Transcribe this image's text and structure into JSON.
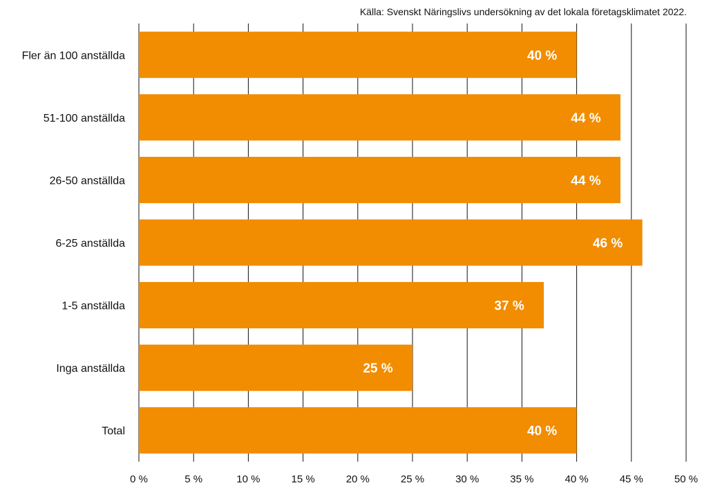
{
  "source_note": "Källa: Svenskt Näringslivs undersökning av det lokala företagsklimatet 2022.",
  "chart_data": {
    "type": "bar",
    "orientation": "horizontal",
    "categories": [
      "Fler än 100 anställda",
      "51-100 anställda",
      "26-50 anställda",
      "6-25 anställda",
      "1-5 anställda",
      "Inga anställda",
      "Total"
    ],
    "values": [
      40,
      44,
      44,
      46,
      37,
      25,
      40
    ],
    "data_labels": [
      "40 %",
      "44 %",
      "44 %",
      "46 %",
      "37 %",
      "25 %",
      "40 %"
    ],
    "x_ticks": [
      "0 %",
      "5 %",
      "10 %",
      "15 %",
      "20 %",
      "25 %",
      "30 %",
      "35 %",
      "40 %",
      "45 %",
      "50 %"
    ],
    "xlim": [
      0,
      50
    ],
    "grid": "vertical",
    "title": "",
    "xlabel": "",
    "ylabel": "",
    "bar_color": "#F28C00",
    "label_color": "#FFFFFF",
    "grid_color": "#111111"
  }
}
